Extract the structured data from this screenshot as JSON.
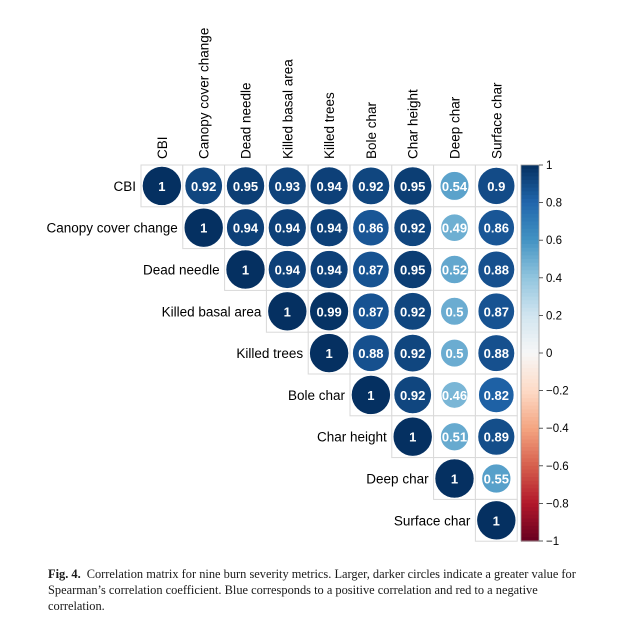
{
  "chart_data": {
    "type": "heatmap",
    "subtype": "correlation-matrix-upper",
    "metrics": [
      "CBI",
      "Canopy cover change",
      "Dead needle",
      "Killed basal area",
      "Killed trees",
      "Bole char",
      "Char height",
      "Deep char",
      "Surface char"
    ],
    "matrix": [
      [
        1,
        0.92,
        0.95,
        0.93,
        0.94,
        0.92,
        0.95,
        0.54,
        0.9
      ],
      [
        null,
        1,
        0.94,
        0.94,
        0.94,
        0.86,
        0.92,
        0.49,
        0.86
      ],
      [
        null,
        null,
        1,
        0.94,
        0.94,
        0.87,
        0.95,
        0.52,
        0.88
      ],
      [
        null,
        null,
        null,
        1,
        0.99,
        0.87,
        0.92,
        0.5,
        0.87
      ],
      [
        null,
        null,
        null,
        null,
        1,
        0.88,
        0.92,
        0.5,
        0.88
      ],
      [
        null,
        null,
        null,
        null,
        null,
        1,
        0.92,
        0.46,
        0.82
      ],
      [
        null,
        null,
        null,
        null,
        null,
        null,
        1,
        0.51,
        0.89
      ],
      [
        null,
        null,
        null,
        null,
        null,
        null,
        null,
        1,
        0.55
      ],
      [
        null,
        null,
        null,
        null,
        null,
        null,
        null,
        null,
        1
      ]
    ],
    "colorbar": {
      "range": [
        -1,
        1
      ],
      "tick_labels": [
        "1",
        "0.8",
        "0.6",
        "0.4",
        "0.2",
        "0",
        "−0.2",
        "−0.4",
        "−0.6",
        "−0.8",
        "−1"
      ],
      "tick_values": [
        1,
        0.8,
        0.6,
        0.4,
        0.2,
        0,
        -0.2,
        -0.4,
        -0.6,
        -0.8,
        -1
      ]
    },
    "colors": {
      "negative": "#67001f",
      "zero": "#f7f7f7",
      "positive": "#053061"
    }
  },
  "caption": {
    "label": "Fig. 4.",
    "text": "Correlation matrix for nine burn severity metrics. Larger, darker circles indicate a greater value for Spearman’s correlation coefficient. Blue corresponds to a positive correlation and red to a negative correlation."
  }
}
